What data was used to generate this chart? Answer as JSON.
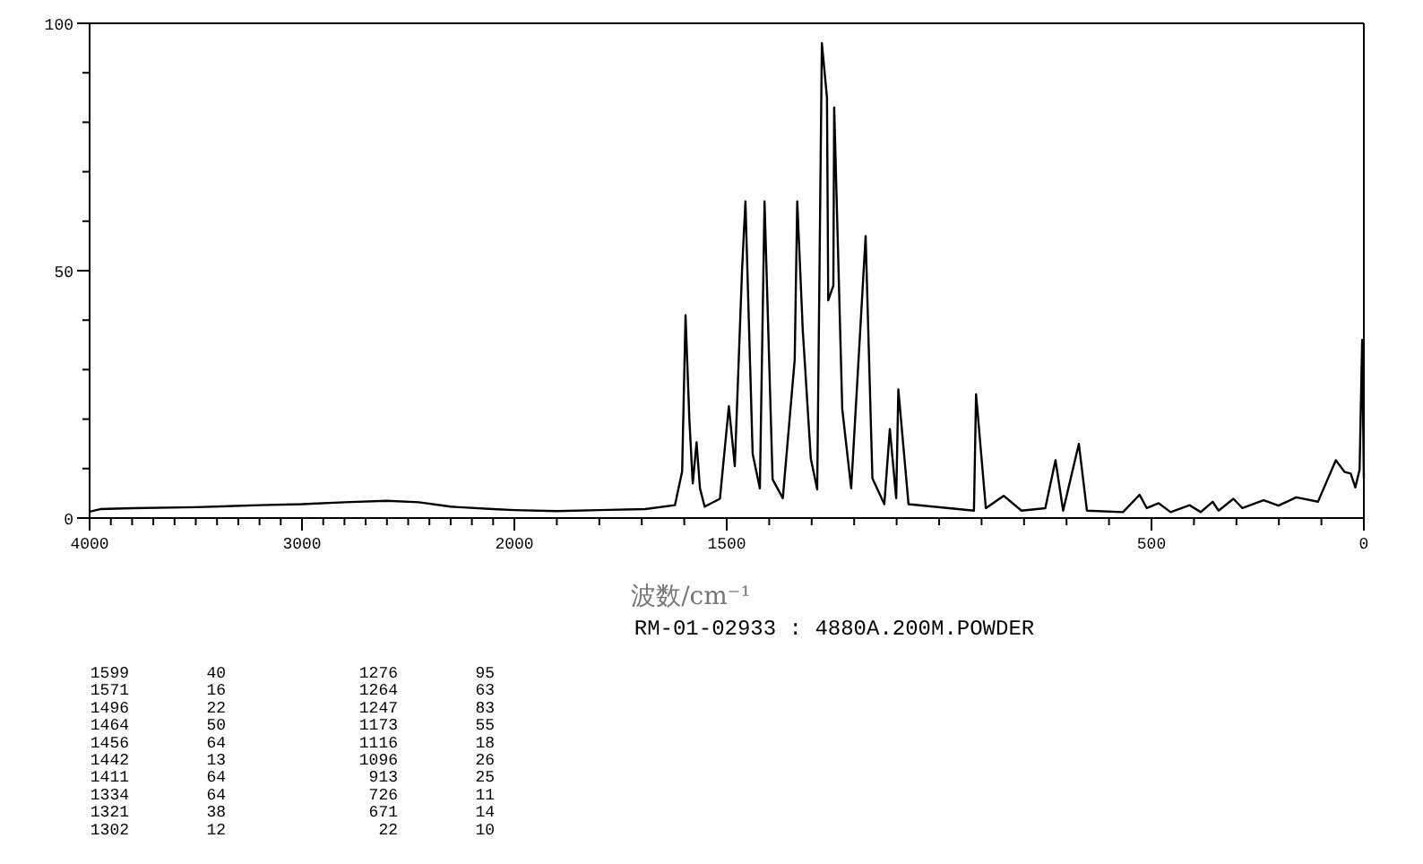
{
  "chart_data": [
    {
      "type": "line",
      "xlabel": "波数/cm⁻¹",
      "xlim": [
        4000,
        2000
      ],
      "ylim": [
        0,
        100
      ],
      "xticks": [
        4000,
        {
          "value": 3900,
          "label": null
        },
        {
          "value": 3800,
          "label": null
        },
        {
          "value": 3700,
          "label": null
        },
        {
          "value": 3600,
          "label": null
        },
        {
          "value": 3500,
          "label": null
        },
        {
          "value": 3400,
          "label": null
        },
        {
          "value": 3300,
          "label": null
        },
        {
          "value": 3200,
          "label": null
        },
        {
          "value": 3100,
          "label": null
        },
        3000,
        {
          "value": 2900,
          "label": null
        },
        {
          "value": 2800,
          "label": null
        },
        {
          "value": 2700,
          "label": null
        },
        {
          "value": 2600,
          "label": null
        },
        {
          "value": 2500,
          "label": null
        },
        {
          "value": 2400,
          "label": null
        },
        {
          "value": 2300,
          "label": null
        },
        {
          "value": 2200,
          "label": null
        },
        {
          "value": 2100,
          "label": null
        },
        2000
      ],
      "yticks": [
        0,
        {
          "value": 10,
          "label": null
        },
        {
          "value": 20,
          "label": null
        },
        {
          "value": 30,
          "label": null
        },
        {
          "value": 40,
          "label": null
        },
        50,
        {
          "value": 60,
          "label": null
        },
        {
          "value": 70,
          "label": null
        },
        {
          "value": 80,
          "label": null
        },
        {
          "value": 90,
          "label": null
        },
        100
      ],
      "marker": "none",
      "line_style": "solid",
      "series": [
        {
          "color": "#000000",
          "x": [
            4000,
            3950,
            3800,
            3500,
            3200,
            3000,
            2800,
            2600,
            2450,
            2300,
            2100,
            2000
          ],
          "values": [
            1.3,
            1.8,
            2,
            2.2,
            2.6,
            2.8,
            3.2,
            3.5,
            3.2,
            2.3,
            1.8,
            1.6
          ]
        }
      ],
      "annotations": [
        "1599 40",
        "1571 16",
        "1496 22",
        "1464 50",
        "1456 64",
        "1442 13",
        "1411 64",
        "1334 64",
        "1321 38",
        "1302 12",
        "1276 95",
        "1264 63",
        "1247 83",
        "1173 55",
        "1116 18",
        "1096 26",
        "913 25",
        "726 11",
        "671 14",
        "22 10"
      ]
    },
    {
      "type": "line",
      "subtitle": "RM-01-02933 : 4880A.200M.POWDER",
      "xlim": [
        2000,
        0
      ],
      "ylim": [
        0,
        100
      ],
      "tick_labels": "x",
      "xticks": [
        {
          "value": 1900,
          "label": null
        },
        {
          "value": 1800,
          "label": null
        },
        {
          "value": 1700,
          "label": null
        },
        {
          "value": 1600,
          "label": null
        },
        1500,
        {
          "value": 1400,
          "label": null
        },
        {
          "value": 1300,
          "label": null
        },
        {
          "value": 1200,
          "label": null
        },
        {
          "value": 1100,
          "label": null
        },
        {
          "value": 1000,
          "label": null
        },
        {
          "value": 900,
          "label": null
        },
        {
          "value": 800,
          "label": null
        },
        {
          "value": 700,
          "label": null
        },
        {
          "value": 600,
          "label": null
        },
        500,
        {
          "value": 400,
          "label": null
        },
        {
          "value": 300,
          "label": null
        },
        {
          "value": 200,
          "label": null
        },
        {
          "value": 100,
          "label": null
        },
        0
      ],
      "marker": "none",
      "line_style": "solid",
      "series": [
        {
          "color": "#000000",
          "x": [
            2000,
            1900,
            1800,
            1692,
            1622,
            1605,
            1597,
            1588,
            1580,
            1571,
            1563,
            1552,
            1516,
            1495,
            1481,
            1464,
            1456,
            1439,
            1422,
            1411,
            1392,
            1368,
            1340,
            1334,
            1321,
            1302,
            1287,
            1276,
            1264,
            1261,
            1249,
            1247,
            1228,
            1207,
            1173,
            1157,
            1129,
            1116,
            1101,
            1096,
            1072,
            918,
            913,
            890,
            848,
            806,
            750,
            726,
            708,
            671,
            652,
            567,
            528,
            511,
            483,
            455,
            410,
            384,
            356,
            342,
            307,
            286,
            236,
            201,
            159,
            108,
            87,
            66,
            45,
            31,
            20,
            10,
            4,
            0
          ],
          "values": [
            1.6,
            1.4,
            1.6,
            1.8,
            2.6,
            9.4,
            41,
            20,
            7,
            15.3,
            6,
            2.3,
            3.9,
            22.6,
            10.5,
            50,
            64,
            13,
            6,
            64,
            7.8,
            4,
            32,
            64,
            38,
            12,
            5.8,
            96,
            85,
            44,
            47,
            83,
            22,
            6,
            57,
            8,
            2.8,
            18,
            4,
            26,
            2.8,
            1.5,
            25,
            2,
            4.5,
            1.5,
            2,
            11.7,
            1.5,
            15,
            1.5,
            1.2,
            4.7,
            2,
            3,
            1.2,
            2.6,
            1.2,
            3.3,
            1.5,
            3.9,
            2,
            3.6,
            2.5,
            4.2,
            3.3,
            7.5,
            11.7,
            9.3,
            9,
            6.2,
            9.8,
            36,
            8
          ]
        }
      ]
    }
  ]
}
